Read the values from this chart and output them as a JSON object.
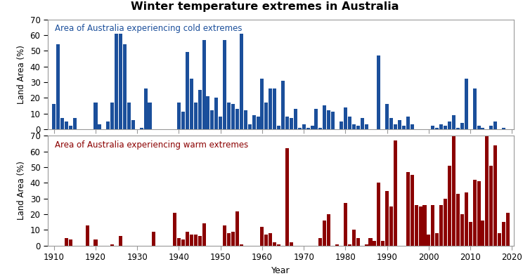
{
  "title": "Winter temperature extremes in Australia",
  "cold_label": "Area of Australia experiencing cold extremes",
  "warm_label": "Area of Australia experiencing warm extremes",
  "xlabel": "Year",
  "ylabel": "Land Area (%)",
  "cold_color": "#1B4F9B",
  "warm_color": "#8B0000",
  "ylim": [
    0,
    70
  ],
  "yticks": [
    0,
    10,
    20,
    30,
    40,
    50,
    60,
    70
  ],
  "xticks": [
    1910,
    1920,
    1930,
    1940,
    1950,
    1960,
    1970,
    1980,
    1990,
    2000,
    2010,
    2020
  ],
  "years": [
    1910,
    1911,
    1912,
    1913,
    1914,
    1915,
    1916,
    1917,
    1918,
    1919,
    1920,
    1921,
    1922,
    1923,
    1924,
    1925,
    1926,
    1927,
    1928,
    1929,
    1930,
    1931,
    1932,
    1933,
    1934,
    1935,
    1936,
    1937,
    1938,
    1939,
    1940,
    1941,
    1942,
    1943,
    1944,
    1945,
    1946,
    1947,
    1948,
    1949,
    1950,
    1951,
    1952,
    1953,
    1954,
    1955,
    1956,
    1957,
    1958,
    1959,
    1960,
    1961,
    1962,
    1963,
    1964,
    1965,
    1966,
    1967,
    1968,
    1969,
    1970,
    1971,
    1972,
    1973,
    1974,
    1975,
    1976,
    1977,
    1978,
    1979,
    1980,
    1981,
    1982,
    1983,
    1984,
    1985,
    1986,
    1987,
    1988,
    1989,
    1990,
    1991,
    1992,
    1993,
    1994,
    1995,
    1996,
    1997,
    1998,
    1999,
    2000,
    2001,
    2002,
    2003,
    2004,
    2005,
    2006,
    2007,
    2008,
    2009,
    2010,
    2011,
    2012,
    2013,
    2014,
    2015,
    2016,
    2017,
    2018,
    2019
  ],
  "cold_values": [
    16,
    54,
    7,
    5,
    2,
    7,
    0,
    0,
    0,
    0,
    17,
    3,
    0,
    5,
    17,
    61,
    61,
    54,
    17,
    6,
    0,
    1,
    26,
    17,
    0,
    0,
    0,
    0,
    0,
    0,
    17,
    11,
    49,
    32,
    17,
    25,
    57,
    21,
    12,
    20,
    8,
    57,
    17,
    16,
    13,
    61,
    12,
    3,
    9,
    8,
    32,
    17,
    26,
    26,
    2,
    31,
    8,
    7,
    13,
    1,
    3,
    1,
    2,
    13,
    1,
    15,
    12,
    11,
    0,
    5,
    14,
    8,
    3,
    2,
    7,
    3,
    0,
    0,
    47,
    0,
    16,
    7,
    3,
    6,
    2,
    8,
    3,
    0,
    0,
    0,
    0,
    2,
    1,
    3,
    2,
    5,
    9,
    1,
    4,
    32,
    0,
    26,
    2,
    1,
    0,
    2,
    5,
    0,
    1,
    0
  ],
  "warm_values": [
    0,
    0,
    0,
    5,
    4,
    0,
    0,
    0,
    13,
    0,
    4,
    0,
    0,
    0,
    1,
    0,
    6,
    0,
    0,
    0,
    0,
    0,
    0,
    0,
    9,
    0,
    0,
    0,
    0,
    21,
    5,
    4,
    9,
    7,
    7,
    6,
    14,
    0,
    0,
    0,
    0,
    13,
    8,
    9,
    22,
    1,
    0,
    0,
    0,
    0,
    12,
    7,
    8,
    2,
    1,
    0,
    62,
    2,
    0,
    0,
    0,
    0,
    0,
    0,
    5,
    16,
    20,
    0,
    1,
    0,
    27,
    1,
    10,
    5,
    0,
    1,
    5,
    3,
    40,
    3,
    35,
    25,
    67,
    0,
    0,
    47,
    45,
    26,
    25,
    26,
    7,
    26,
    8,
    26,
    30,
    51,
    71,
    33,
    20,
    34,
    15,
    42,
    41,
    16,
    70,
    51,
    64,
    8,
    15,
    21
  ]
}
